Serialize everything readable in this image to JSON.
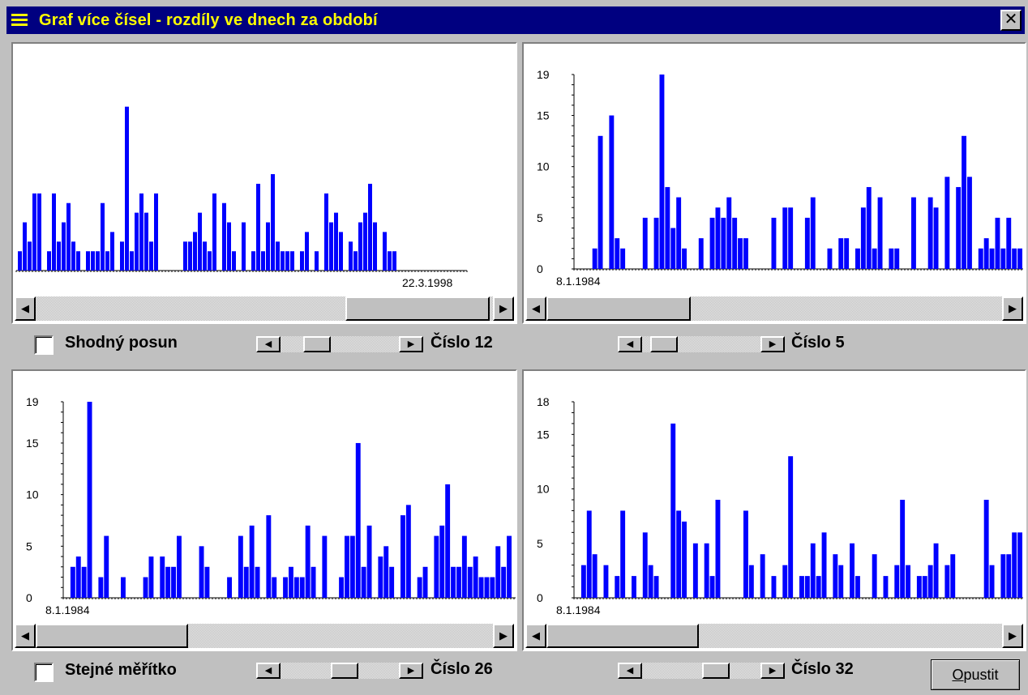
{
  "window": {
    "title": "Graf více čísel - rozdíly ve dnech za období",
    "close_glyph": "✕"
  },
  "controls": {
    "shodny_posun": "Shodný posun",
    "stejne_meritko": "Stejné měřítko",
    "opustit_underlined": "O",
    "opustit_rest": "pustit"
  },
  "charts": [
    {
      "label": "Číslo 12",
      "date_label": "22.3.1998",
      "ymax": 20,
      "yticks": [],
      "bar_color": "#0000ff",
      "values": [
        2,
        5,
        3,
        8,
        8,
        0,
        2,
        8,
        3,
        5,
        7,
        3,
        2,
        0,
        2,
        2,
        2,
        7,
        2,
        4,
        0,
        3,
        17,
        2,
        6,
        8,
        6,
        3,
        8,
        0,
        0,
        0,
        0,
        0,
        3,
        3,
        4,
        6,
        3,
        2,
        8,
        0,
        7,
        5,
        2,
        0,
        5,
        0,
        2,
        9,
        2,
        5,
        10,
        3,
        2,
        2,
        2,
        0,
        2,
        4,
        0,
        2,
        0,
        8,
        5,
        6,
        4,
        0,
        3,
        2,
        5,
        6,
        9,
        5,
        0,
        4,
        2,
        2
      ]
    },
    {
      "label": "Číslo 5",
      "date_label": "8.1.1984",
      "ymax": 19,
      "yticks": [
        0,
        5,
        10,
        15,
        19
      ],
      "bar_color": "#0000ff",
      "values": [
        0,
        0,
        0,
        2,
        13,
        0,
        15,
        3,
        2,
        0,
        0,
        0,
        5,
        0,
        5,
        19,
        8,
        4,
        7,
        2,
        0,
        0,
        3,
        0,
        5,
        6,
        5,
        7,
        5,
        3,
        3,
        0,
        0,
        0,
        0,
        5,
        0,
        6,
        6,
        0,
        0,
        5,
        7,
        0,
        0,
        2,
        0,
        3,
        3,
        0,
        2,
        6,
        8,
        2,
        7,
        0,
        2,
        2,
        0,
        0,
        7,
        0,
        0,
        7,
        6,
        0,
        9,
        0,
        8,
        13,
        9,
        0,
        2,
        3,
        2,
        5,
        2,
        5,
        2,
        2,
        0,
        3,
        2
      ]
    },
    {
      "label": "Číslo 26",
      "date_label": "8.1.1984",
      "ymax": 19,
      "yticks": [
        0,
        5,
        10,
        15,
        19
      ],
      "bar_color": "#0000ff",
      "values": [
        0,
        3,
        4,
        3,
        19,
        0,
        2,
        6,
        0,
        0,
        2,
        0,
        0,
        0,
        2,
        4,
        0,
        4,
        3,
        3,
        6,
        0,
        0,
        0,
        5,
        3,
        0,
        0,
        0,
        2,
        0,
        6,
        3,
        7,
        3,
        0,
        8,
        2,
        0,
        2,
        3,
        2,
        2,
        7,
        3,
        0,
        6,
        0,
        0,
        2,
        6,
        6,
        15,
        3,
        7,
        0,
        4,
        5,
        3,
        0,
        8,
        9,
        0,
        2,
        3,
        0,
        6,
        7,
        11,
        3,
        3,
        6,
        3,
        4,
        2,
        2,
        2,
        5,
        3,
        6
      ]
    },
    {
      "label": "Číslo 32",
      "date_label": "8.1.1984",
      "ymax": 18,
      "yticks": [
        0,
        5,
        10,
        15,
        18
      ],
      "bar_color": "#0000ff",
      "values": [
        0,
        3,
        8,
        4,
        0,
        3,
        0,
        2,
        8,
        0,
        2,
        0,
        6,
        3,
        2,
        0,
        0,
        16,
        8,
        7,
        0,
        5,
        0,
        5,
        2,
        9,
        0,
        0,
        0,
        0,
        8,
        3,
        0,
        4,
        0,
        2,
        0,
        3,
        13,
        0,
        2,
        2,
        5,
        2,
        6,
        0,
        4,
        3,
        0,
        5,
        2,
        0,
        0,
        4,
        0,
        2,
        0,
        3,
        9,
        3,
        0,
        2,
        2,
        3,
        5,
        0,
        3,
        4,
        0,
        0,
        0,
        0,
        0,
        9,
        3,
        0,
        4,
        4,
        6,
        6,
        0,
        3
      ]
    }
  ]
}
